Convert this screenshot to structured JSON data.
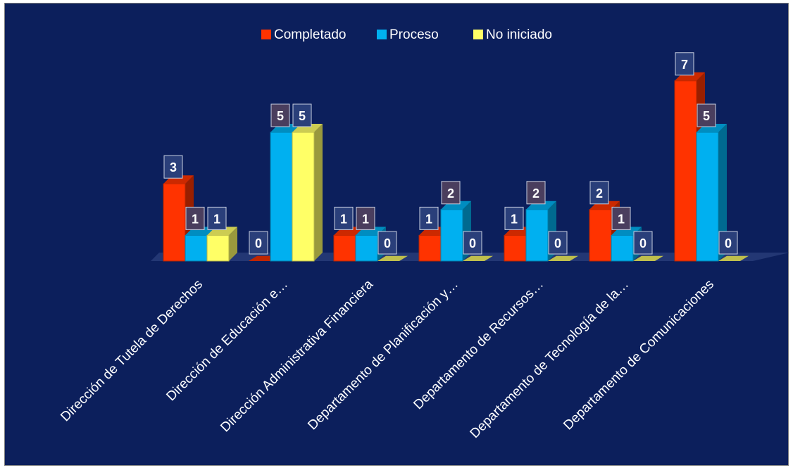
{
  "chart_data": {
    "type": "bar",
    "style": "3d-clustered",
    "categories": [
      "Dirección de Tutela de Derechos",
      "Dirección de Educación e…",
      "Dirección Administrativa Financiera",
      "Departamento de Planificación y…",
      "Departamento de Recursos…",
      "Departamento de Tecnología de la…",
      "Departamento de Comunicaciones"
    ],
    "series": [
      {
        "name": "Completado",
        "color": "#ff3300",
        "values": [
          3,
          0,
          1,
          1,
          1,
          2,
          7
        ]
      },
      {
        "name": "Proceso",
        "color": "#00b0f0",
        "values": [
          1,
          5,
          1,
          2,
          2,
          1,
          5
        ]
      },
      {
        "name": "No iniciado",
        "color": "#ffff66",
        "values": [
          1,
          5,
          0,
          0,
          0,
          0,
          0
        ]
      }
    ],
    "ylim": [
      0,
      7
    ],
    "grid": false,
    "legend": "top-center",
    "data_labels": true,
    "background": "#0c1f5c",
    "label_box_colors": [
      "#2a3f7a",
      "#4a3e5e"
    ]
  }
}
